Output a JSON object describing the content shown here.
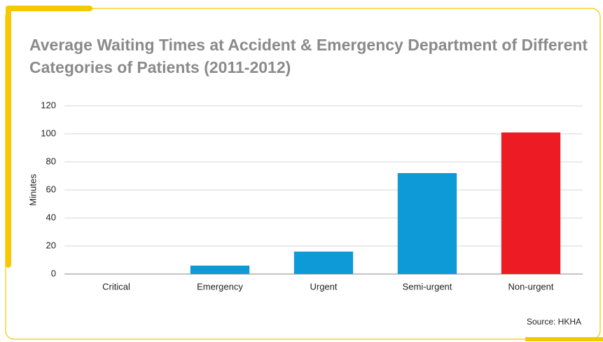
{
  "chart_data": {
    "type": "bar",
    "title": "Average Waiting Times at Accident & Emergency Department of Different Categories of Patients (2011-2012)",
    "y_label": "Minutes",
    "source": "Source: HKHA",
    "categories": [
      "Critical",
      "Emergency",
      "Urgent",
      "Semi-urgent",
      "Non-urgent"
    ],
    "values": [
      0,
      6,
      16,
      72,
      101
    ],
    "colors": [
      "#0e9ad7",
      "#0e9ad7",
      "#0e9ad7",
      "#0e9ad7",
      "#ed1c24"
    ],
    "ylim": [
      0,
      120
    ],
    "yticks": [
      0,
      20,
      40,
      60,
      80,
      100,
      120
    ],
    "grid": true
  }
}
